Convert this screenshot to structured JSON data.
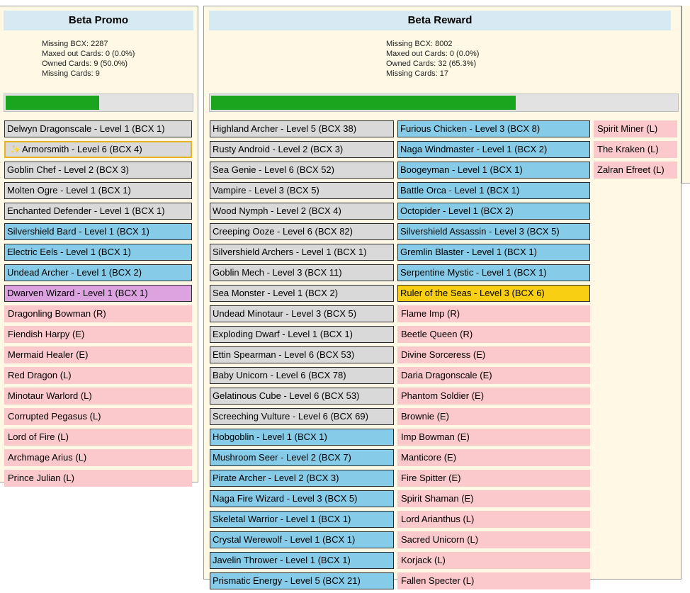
{
  "beta_promo": {
    "title": "Beta Promo",
    "stats": {
      "missing_bcx": "Missing BCX: 2287",
      "maxed": "Maxed out Cards: 0 (0.0%)",
      "owned": "Owned Cards: 9 (50.0%)",
      "missing_cards": "Missing Cards: 9"
    },
    "progress": 0.5,
    "cards": [
      {
        "label": "Delwyn Dragonscale - Level 1 (BCX 1)",
        "state": "owned-gray"
      },
      {
        "label": "Armorsmith - Level 6 (BCX 4)",
        "state": "highlight",
        "icon": "sparkle-icon"
      },
      {
        "label": "Goblin Chef - Level 2 (BCX 3)",
        "state": "owned-gray"
      },
      {
        "label": "Molten Ogre - Level 1 (BCX 1)",
        "state": "owned-gray"
      },
      {
        "label": "Enchanted Defender - Level 1 (BCX 1)",
        "state": "owned-gray"
      },
      {
        "label": "Silvershield Bard - Level 1 (BCX 1)",
        "state": "owned-blue"
      },
      {
        "label": "Electric Eels - Level 1 (BCX 1)",
        "state": "owned-blue"
      },
      {
        "label": "Undead Archer - Level 1 (BCX 2)",
        "state": "owned-blue"
      },
      {
        "label": "Dwarven Wizard - Level 1 (BCX 1)",
        "state": "owned-purple"
      },
      {
        "label": "Dragonling Bowman (R)",
        "state": "missing"
      },
      {
        "label": "Fiendish Harpy (E)",
        "state": "missing"
      },
      {
        "label": "Mermaid Healer (E)",
        "state": "missing"
      },
      {
        "label": "Red Dragon (L)",
        "state": "missing"
      },
      {
        "label": "Minotaur Warlord (L)",
        "state": "missing"
      },
      {
        "label": "Corrupted Pegasus (L)",
        "state": "missing"
      },
      {
        "label": "Lord of Fire (L)",
        "state": "missing"
      },
      {
        "label": "Archmage Arius (L)",
        "state": "missing"
      },
      {
        "label": "Prince Julian (L)",
        "state": "missing"
      }
    ]
  },
  "beta_reward": {
    "title": "Beta Reward",
    "stats": {
      "missing_bcx": "Missing BCX: 8002",
      "maxed": "Maxed out Cards: 0 (0.0%)",
      "owned": "Owned Cards: 32 (65.3%)",
      "missing_cards": "Missing Cards: 17"
    },
    "progress": 0.653,
    "col1": [
      {
        "label": "Highland Archer - Level 5 (BCX 38)",
        "state": "owned-gray"
      },
      {
        "label": "Rusty Android - Level 2 (BCX 3)",
        "state": "owned-gray"
      },
      {
        "label": "Sea Genie - Level 6 (BCX 52)",
        "state": "owned-gray"
      },
      {
        "label": "Vampire - Level 3 (BCX 5)",
        "state": "owned-gray"
      },
      {
        "label": "Wood Nymph - Level 2 (BCX 4)",
        "state": "owned-gray"
      },
      {
        "label": "Creeping Ooze - Level 6 (BCX 82)",
        "state": "owned-gray"
      },
      {
        "label": "Silvershield Archers - Level 1 (BCX 1)",
        "state": "owned-gray"
      },
      {
        "label": "Goblin Mech - Level 3 (BCX 11)",
        "state": "owned-gray"
      },
      {
        "label": "Sea Monster - Level 1 (BCX 2)",
        "state": "owned-gray"
      },
      {
        "label": "Undead Minotaur - Level 3 (BCX 5)",
        "state": "owned-gray"
      },
      {
        "label": "Exploding Dwarf - Level 1 (BCX 1)",
        "state": "owned-gray"
      },
      {
        "label": "Ettin Spearman - Level 6 (BCX 53)",
        "state": "owned-gray"
      },
      {
        "label": "Baby Unicorn - Level 6 (BCX 78)",
        "state": "owned-gray"
      },
      {
        "label": "Gelatinous Cube - Level 6 (BCX 53)",
        "state": "owned-gray"
      },
      {
        "label": "Screeching Vulture - Level 6 (BCX 69)",
        "state": "owned-gray"
      },
      {
        "label": "Hobgoblin - Level 1 (BCX 1)",
        "state": "owned-blue"
      },
      {
        "label": "Mushroom Seer - Level 2 (BCX 7)",
        "state": "owned-blue"
      },
      {
        "label": "Pirate Archer - Level 2 (BCX 3)",
        "state": "owned-blue"
      },
      {
        "label": "Naga Fire Wizard - Level 3 (BCX 5)",
        "state": "owned-blue"
      },
      {
        "label": "Skeletal Warrior - Level 1 (BCX 1)",
        "state": "owned-blue"
      },
      {
        "label": "Crystal Werewolf - Level 1 (BCX 1)",
        "state": "owned-blue"
      },
      {
        "label": "Javelin Thrower - Level 1 (BCX 1)",
        "state": "owned-blue"
      },
      {
        "label": "Prismatic Energy - Level 5 (BCX 21)",
        "state": "owned-blue"
      }
    ],
    "col2": [
      {
        "label": "Furious Chicken - Level 3 (BCX 8)",
        "state": "owned-blue"
      },
      {
        "label": "Naga Windmaster - Level 1 (BCX 2)",
        "state": "owned-blue"
      },
      {
        "label": "Boogeyman - Level 1 (BCX 1)",
        "state": "owned-blue"
      },
      {
        "label": "Battle Orca - Level 1 (BCX 1)",
        "state": "owned-blue"
      },
      {
        "label": "Octopider - Level 1 (BCX 2)",
        "state": "owned-blue"
      },
      {
        "label": "Silvershield Assassin - Level 3 (BCX 5)",
        "state": "owned-blue"
      },
      {
        "label": "Gremlin Blaster - Level 1 (BCX 1)",
        "state": "owned-blue"
      },
      {
        "label": "Serpentine Mystic - Level 1 (BCX 1)",
        "state": "owned-blue"
      },
      {
        "label": "Ruler of the Seas - Level 3 (BCX 6)",
        "state": "owned-gold"
      },
      {
        "label": "Flame Imp (R)",
        "state": "missing"
      },
      {
        "label": "Beetle Queen (R)",
        "state": "missing"
      },
      {
        "label": "Divine Sorceress (E)",
        "state": "missing"
      },
      {
        "label": "Daria Dragonscale (E)",
        "state": "missing"
      },
      {
        "label": "Phantom Soldier (E)",
        "state": "missing"
      },
      {
        "label": "Brownie (E)",
        "state": "missing"
      },
      {
        "label": "Imp Bowman (E)",
        "state": "missing"
      },
      {
        "label": "Manticore (E)",
        "state": "missing"
      },
      {
        "label": "Fire Spitter (E)",
        "state": "missing"
      },
      {
        "label": "Spirit Shaman (E)",
        "state": "missing"
      },
      {
        "label": "Lord Arianthus (L)",
        "state": "missing"
      },
      {
        "label": "Sacred Unicorn (L)",
        "state": "missing"
      },
      {
        "label": "Korjack (L)",
        "state": "missing"
      },
      {
        "label": "Fallen Specter (L)",
        "state": "missing"
      }
    ],
    "col3": [
      {
        "label": "Spirit Miner (L)",
        "state": "missing"
      },
      {
        "label": "The Kraken (L)",
        "state": "missing"
      },
      {
        "label": "Zalran Efreet (L)",
        "state": "missing"
      }
    ]
  },
  "colors": {
    "panel_bg": "#fff8e5",
    "title_bg": "#d7e9f3",
    "owned_gray": "#d9d9d9",
    "owned_blue": "#86cce8",
    "owned_purple": "#dda3e0",
    "owned_gold": "#f8cf12",
    "missing": "#fbc8cb",
    "progress": "#1aa51f"
  }
}
